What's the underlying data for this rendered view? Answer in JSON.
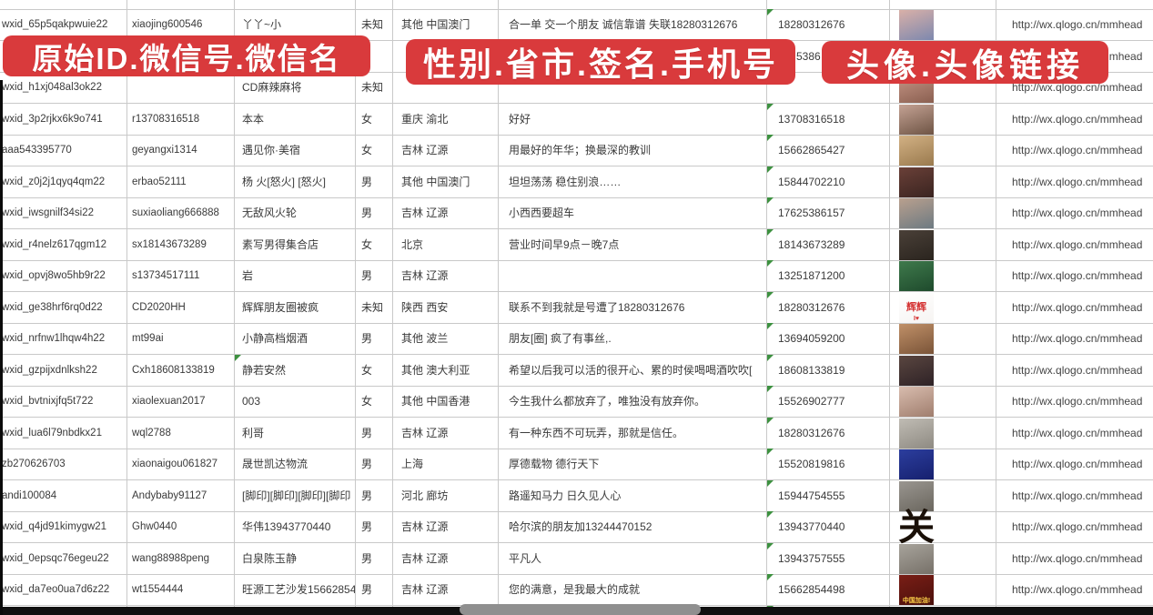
{
  "banners": [
    {
      "label": "原始ID.微信号.微信名"
    },
    {
      "label": "性别.省市.签名.手机号"
    },
    {
      "label": "头像.头像链接"
    }
  ],
  "banner_color": "#d93a3c",
  "marker_color": "#3d9140",
  "rows": [
    {
      "wxid": "",
      "wechat_id": "",
      "nickname": "",
      "gender": "",
      "region": "",
      "signature": "",
      "phone": "",
      "phone_marker": false,
      "link": "",
      "avatar": null
    },
    {
      "wxid": "wxid_65p5qakpwuie22",
      "wechat_id": "xiaojing600546",
      "nickname": "丫丫~小",
      "gender": "未知",
      "region": "其他 中国澳门",
      "signature": "合一单 交一个朋友 诚信靠谱 失联18280312676",
      "phone": "18280312676",
      "phone_marker": true,
      "link": "http://wx.qlogo.cn/mmhead",
      "avatar": {
        "desc": "girl with dark hair, lilac background",
        "c1": "#d9b0a8",
        "c2": "#7d88ae"
      }
    },
    {
      "wxid": "",
      "wechat_id": "",
      "nickname": "",
      "gender": "",
      "region": "",
      "signature": "",
      "phone": "5386",
      "phone_pad": 32,
      "phone_marker": false,
      "link": "http://wx.qlogo.cn/mmhead",
      "avatar": {
        "desc": "avatar mostly hidden by banner, blue tones",
        "c1": "#5b79aa",
        "c2": "#41588a"
      }
    },
    {
      "wxid": "wxid_h1xj048al3ok22",
      "wechat_id": "",
      "nickname": "CD麻辣麻将",
      "gender": "未知",
      "region": "",
      "signature": "",
      "phone": "",
      "phone_marker": false,
      "link": "http://wx.qlogo.cn/mmhead",
      "avatar": {
        "desc": "girl with brown hair",
        "c1": "#c89888",
        "c2": "#8a5f50"
      }
    },
    {
      "wxid": "wxid_3p2rjkx6k9o741",
      "wechat_id": "r13708316518",
      "nickname": "本本",
      "gender": "女",
      "region": "重庆 渝北",
      "signature": "好好",
      "phone": "13708316518",
      "phone_marker": true,
      "link": "http://wx.qlogo.cn/mmhead",
      "avatar": {
        "desc": "girl with long dark hair in white top",
        "c1": "#c4a294",
        "c2": "#6e5444"
      }
    },
    {
      "wxid": "aaa543395770",
      "wechat_id": "geyangxi1314",
      "nickname": "遇见你·美宿",
      "gender": "女",
      "region": "吉林 辽源",
      "signature": "用最好的年华；换最深的教训",
      "phone": "15662865427",
      "phone_marker": true,
      "link": "http://wx.qlogo.cn/mmhead",
      "avatar": {
        "desc": "beige photo with dried flowers",
        "c1": "#d2b184",
        "c2": "#9a7a4e"
      }
    },
    {
      "wxid": "wxid_z0j2j1qyq4qm22",
      "wechat_id": "erbao52111",
      "nickname": "杨 火[怒火] [怒火]",
      "gender": "男",
      "region": "其他 中国澳门",
      "signature": "坦坦荡荡 稳住别浪……",
      "phone": "15844702210",
      "phone_marker": true,
      "link": "http://wx.qlogo.cn/mmhead",
      "avatar": {
        "desc": "dark red photo with figurines",
        "c1": "#6a4038",
        "c2": "#3a2420"
      }
    },
    {
      "wxid": "wxid_iwsgnilf34si22",
      "wechat_id": "suxiaoliang666888",
      "nickname": "无敌风火轮",
      "gender": "男",
      "region": "吉林 辽源",
      "signature": "小西西要超车",
      "phone": "17625386157",
      "phone_marker": true,
      "link": "http://wx.qlogo.cn/mmhead",
      "avatar": {
        "desc": "child in car seat",
        "c1": "#b9a08e",
        "c2": "#6d7a82"
      }
    },
    {
      "wxid": "wxid_r4nelz617qgm12",
      "wechat_id": "sx18143673289",
      "nickname": "素写男得集合店",
      "gender": "女",
      "region": "北京",
      "signature": "营业时间早9点－晚7点",
      "phone": "18143673289",
      "phone_marker": true,
      "link": "http://wx.qlogo.cn/mmhead",
      "avatar": {
        "desc": "dark storefront interior",
        "c1": "#4a4038",
        "c2": "#2a241e"
      }
    },
    {
      "wxid": "wxid_opvj8wo5hb9r22",
      "wechat_id": "s13734517111",
      "nickname": "岩",
      "gender": "男",
      "region": "吉林 辽源",
      "signature": "",
      "phone": "13251871200",
      "phone_marker": true,
      "link": "http://wx.qlogo.cn/mmhead",
      "avatar": {
        "desc": "green sign with road",
        "c1": "#3f7a4c",
        "c2": "#1e4a2c"
      }
    },
    {
      "wxid": "wxid_ge38hrf6rq0d22",
      "wechat_id": "CD2020HH",
      "nickname": "辉辉朋友圈被疯",
      "gender": "未知",
      "region": "陕西 西安",
      "signature": "联系不到我就是号遭了18280312676",
      "phone": "18280312676",
      "phone_marker": true,
      "link": "http://wx.qlogo.cn/mmhead",
      "avatar": {
        "desc": "white avatar with red characters",
        "c1": "#ffffff",
        "c2": "#f6f4f2",
        "text": "辉辉",
        "text_color": "#d43030",
        "text_size": 11,
        "sub": "I♥",
        "sub_color": "#d43030"
      }
    },
    {
      "wxid": "wxid_nrfnw1lhqw4h22",
      "wechat_id": "mt99ai",
      "nickname": "小静高档烟酒",
      "gender": "男",
      "region": "其他 波兰",
      "signature": "朋友[圈] 疯了有事丝,.",
      "phone": "13694059200",
      "phone_marker": true,
      "link": "http://wx.qlogo.cn/mmhead",
      "avatar": {
        "desc": "woman with sunglasses",
        "c1": "#c09068",
        "c2": "#7a5438"
      }
    },
    {
      "wxid": "wxid_gzpijxdnlksh22",
      "wechat_id": "Cxh18608133819",
      "nickname": "静若安然",
      "nick_marker": true,
      "gender": "女",
      "region": "其他 澳大利亚",
      "signature": "希望以后我可以活的很开心、累的时侯喝喝酒吹吹[",
      "phone": "18608133819",
      "phone_marker": true,
      "link": "http://wx.qlogo.cn/mmhead",
      "avatar": {
        "desc": "woman with dark hair",
        "c1": "#5a4640",
        "c2": "#2e2226"
      }
    },
    {
      "wxid": "wxid_bvtnixjfq5t722",
      "wechat_id": "xiaolexuan2017",
      "nickname": "003",
      "gender": "女",
      "region": "其他 中国香港",
      "signature": "今生我什么都放弃了，唯独没有放弃你。",
      "phone": "15526902777",
      "phone_marker": true,
      "link": "http://wx.qlogo.cn/mmhead",
      "avatar": {
        "desc": "light selfie of woman",
        "c1": "#d8bcae",
        "c2": "#a07e6e"
      }
    },
    {
      "wxid": "wxid_lua6l79nbdkx21",
      "wechat_id": "wql2788",
      "nickname": "利哥",
      "gender": "男",
      "region": "吉林 辽源",
      "signature": "有一种东西不可玩弄，那就是信任。",
      "phone": "18280312676",
      "phone_marker": true,
      "link": "http://wx.qlogo.cn/mmhead",
      "avatar": {
        "desc": "person in white hat",
        "c1": "#c0bcb4",
        "c2": "#8e8a82"
      }
    },
    {
      "wxid": "zb270626703",
      "wechat_id": "xiaonaigou061827",
      "nickname": "晟世凯达物流",
      "gender": "男",
      "region": "上海",
      "signature": "厚德载物 德行天下",
      "phone": "15520819816",
      "phone_marker": true,
      "link": "http://wx.qlogo.cn/mmhead",
      "avatar": {
        "desc": "blue card with QR code",
        "c1": "#2c3e9e",
        "c2": "#16206e"
      }
    },
    {
      "wxid": "andi100084",
      "wechat_id": "Andybaby91127",
      "nickname": "[脚印][脚印][脚印][脚印",
      "gender": "男",
      "region": "河北 廊坊",
      "signature": "路遥知马力 日久见人心",
      "phone": "15944754555",
      "phone_marker": true,
      "link": "http://wx.qlogo.cn/mmhead",
      "avatar": {
        "desc": "gray photo with figure",
        "c1": "#9a9690",
        "c2": "#6a665e"
      }
    },
    {
      "wxid": "wxid_q4jd91kimygw21",
      "wechat_id": "Ghw0440",
      "nickname": "华伟13943770440",
      "gender": "男",
      "region": "吉林 辽源",
      "signature": "哈尔滨的朋友加13244470152",
      "phone": "13943770440",
      "phone_marker": true,
      "link": "http://wx.qlogo.cn/mmhead",
      "avatar": {
        "desc": "black calligraphy character on white",
        "text": "关",
        "text_color": "#1a1008",
        "text_size": 40,
        "glyph": true
      }
    },
    {
      "wxid": "wxid_0epsqc76egeu22",
      "wechat_id": "wang88988peng",
      "nickname": "白泉陈玉静",
      "gender": "男",
      "region": "吉林 辽源",
      "signature": "平凡人",
      "phone": "13943757555",
      "phone_marker": true,
      "link": "http://wx.qlogo.cn/mmhead",
      "avatar": {
        "desc": "gray photo of person",
        "c1": "#a8a49c",
        "c2": "#767068"
      }
    },
    {
      "wxid": "wxid_da7eo0ua7d6z22",
      "wechat_id": "wt1554444",
      "nickname": "旺源工艺沙发15662854",
      "gender": "男",
      "region": "吉林 辽源",
      "signature": "您的满意，是我最大的成就",
      "phone": "15662854498",
      "phone_marker": true,
      "link": "http://wx.qlogo.cn/mmhead",
      "avatar": {
        "desc": "dark red avatar with China slogan",
        "c1": "#7a1e16",
        "c2": "#4a100c",
        "sub": "中国加油!",
        "sub_color": "#ffd24a"
      }
    },
    {
      "wxid": "",
      "wechat_id": "",
      "nickname": "",
      "gender": "",
      "region": "",
      "signature": "",
      "phone": "",
      "phone_marker": true,
      "link": "",
      "avatar": {
        "desc": "partially visible blue avatar",
        "c1": "#90a4bc",
        "c2": "#60748c"
      }
    }
  ]
}
